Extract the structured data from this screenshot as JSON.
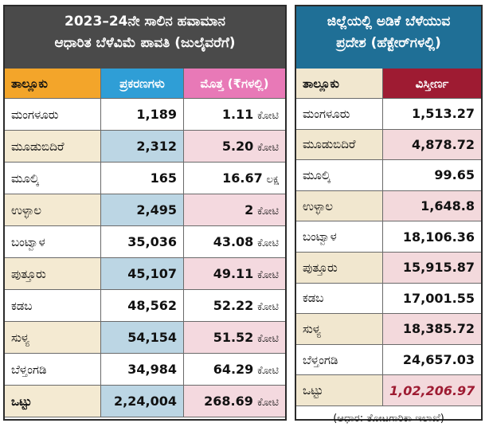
{
  "left": {
    "title_line1": "2023–24ನೇ ಸಾಲಿನ ಹವಾಮಾನ",
    "title_line2": "ಆಧಾರಿತ ಬೆಳೆವಿಮೆ ಪಾವತಿ (ಜುಲೈವರೆಗೆ)",
    "headers": {
      "taluk": "ತಾಲ್ಲೂಕು",
      "cases": "ಪ್ರಕರಣಗಳು",
      "amount": "ಮೊತ್ತ (₹ಗಳಲ್ಲಿ)"
    },
    "rows": [
      {
        "taluk": "ಮಂಗಳೂರು",
        "cases": "1,189",
        "amount": "1.11",
        "unit": "ಕೋಟಿ"
      },
      {
        "taluk": "ಮೂಡುಬಿದಿರೆ",
        "cases": "2,312",
        "amount": "5.20",
        "unit": "ಕೋಟಿ"
      },
      {
        "taluk": "ಮೂಲ್ಕಿ",
        "cases": "165",
        "amount": "16.67",
        "unit": "ಲಕ್ಷ"
      },
      {
        "taluk": "ಉಳ್ಳಾಲ",
        "cases": "2,495",
        "amount": "2",
        "unit": "ಕೋಟಿ"
      },
      {
        "taluk": "ಬಂಟ್ವಾಳ",
        "cases": "35,036",
        "amount": "43.08",
        "unit": "ಕೋಟಿ"
      },
      {
        "taluk": "ಪುತ್ತೂರು",
        "cases": "45,107",
        "amount": "49.11",
        "unit": "ಕೋಟಿ"
      },
      {
        "taluk": "ಕಡಬ",
        "cases": "48,562",
        "amount": "52.22",
        "unit": "ಕೋಟಿ"
      },
      {
        "taluk": "ಸುಳ್ಯ",
        "cases": "54,154",
        "amount": "51.52",
        "unit": "ಕೋಟಿ"
      },
      {
        "taluk": "ಬೆಳ್ತಂಗಡಿ",
        "cases": "34,984",
        "amount": "64.29",
        "unit": "ಕೋಟಿ"
      }
    ],
    "total": {
      "taluk": "ಒಟ್ಟು",
      "cases": "2,24,004",
      "amount": "268.69",
      "unit": "ಕೋಟಿ"
    }
  },
  "right": {
    "title_line1": "ಜಿಲ್ಲೆಯಲ್ಲಿ ಅಡಿಕೆ ಬೆಳೆಯುವ",
    "title_line2": "ಪ್ರದೇಶ (ಹೆಕ್ಟೇರ್‌ಗಳಲ್ಲಿ)",
    "headers": {
      "taluk": "ತಾಲ್ಲೂಕು",
      "area": "ವಿಸ್ತೀರ್ಣ"
    },
    "rows": [
      {
        "taluk": "ಮಂಗಳೂರು",
        "area": "1,513.27"
      },
      {
        "taluk": "ಮೂಡುಬಿದಿರೆ",
        "area": "4,878.72"
      },
      {
        "taluk": "ಮೂಲ್ಕಿ",
        "area": "99.65"
      },
      {
        "taluk": "ಉಳ್ಳಾಲ",
        "area": "1,648.8"
      },
      {
        "taluk": "ಬಂಟ್ವಾಳ",
        "area": "18,106.36"
      },
      {
        "taluk": "ಪುತ್ತೂರು",
        "area": "15,915.87"
      },
      {
        "taluk": "ಕಡಬ",
        "area": "17,001.55"
      },
      {
        "taluk": "ಸುಳ್ಯ",
        "area": "18,385.72"
      },
      {
        "taluk": "ಬೆಳ್ತಂಗಡಿ",
        "area": "24,657.03"
      }
    ],
    "total": {
      "taluk": "ಒಟ್ಟು",
      "area": "1,02,206.97"
    },
    "source": "(ಆಧಾರ: ತೋಟಗಾರಿಕಾ ಇಲಾಖೆ)"
  }
}
